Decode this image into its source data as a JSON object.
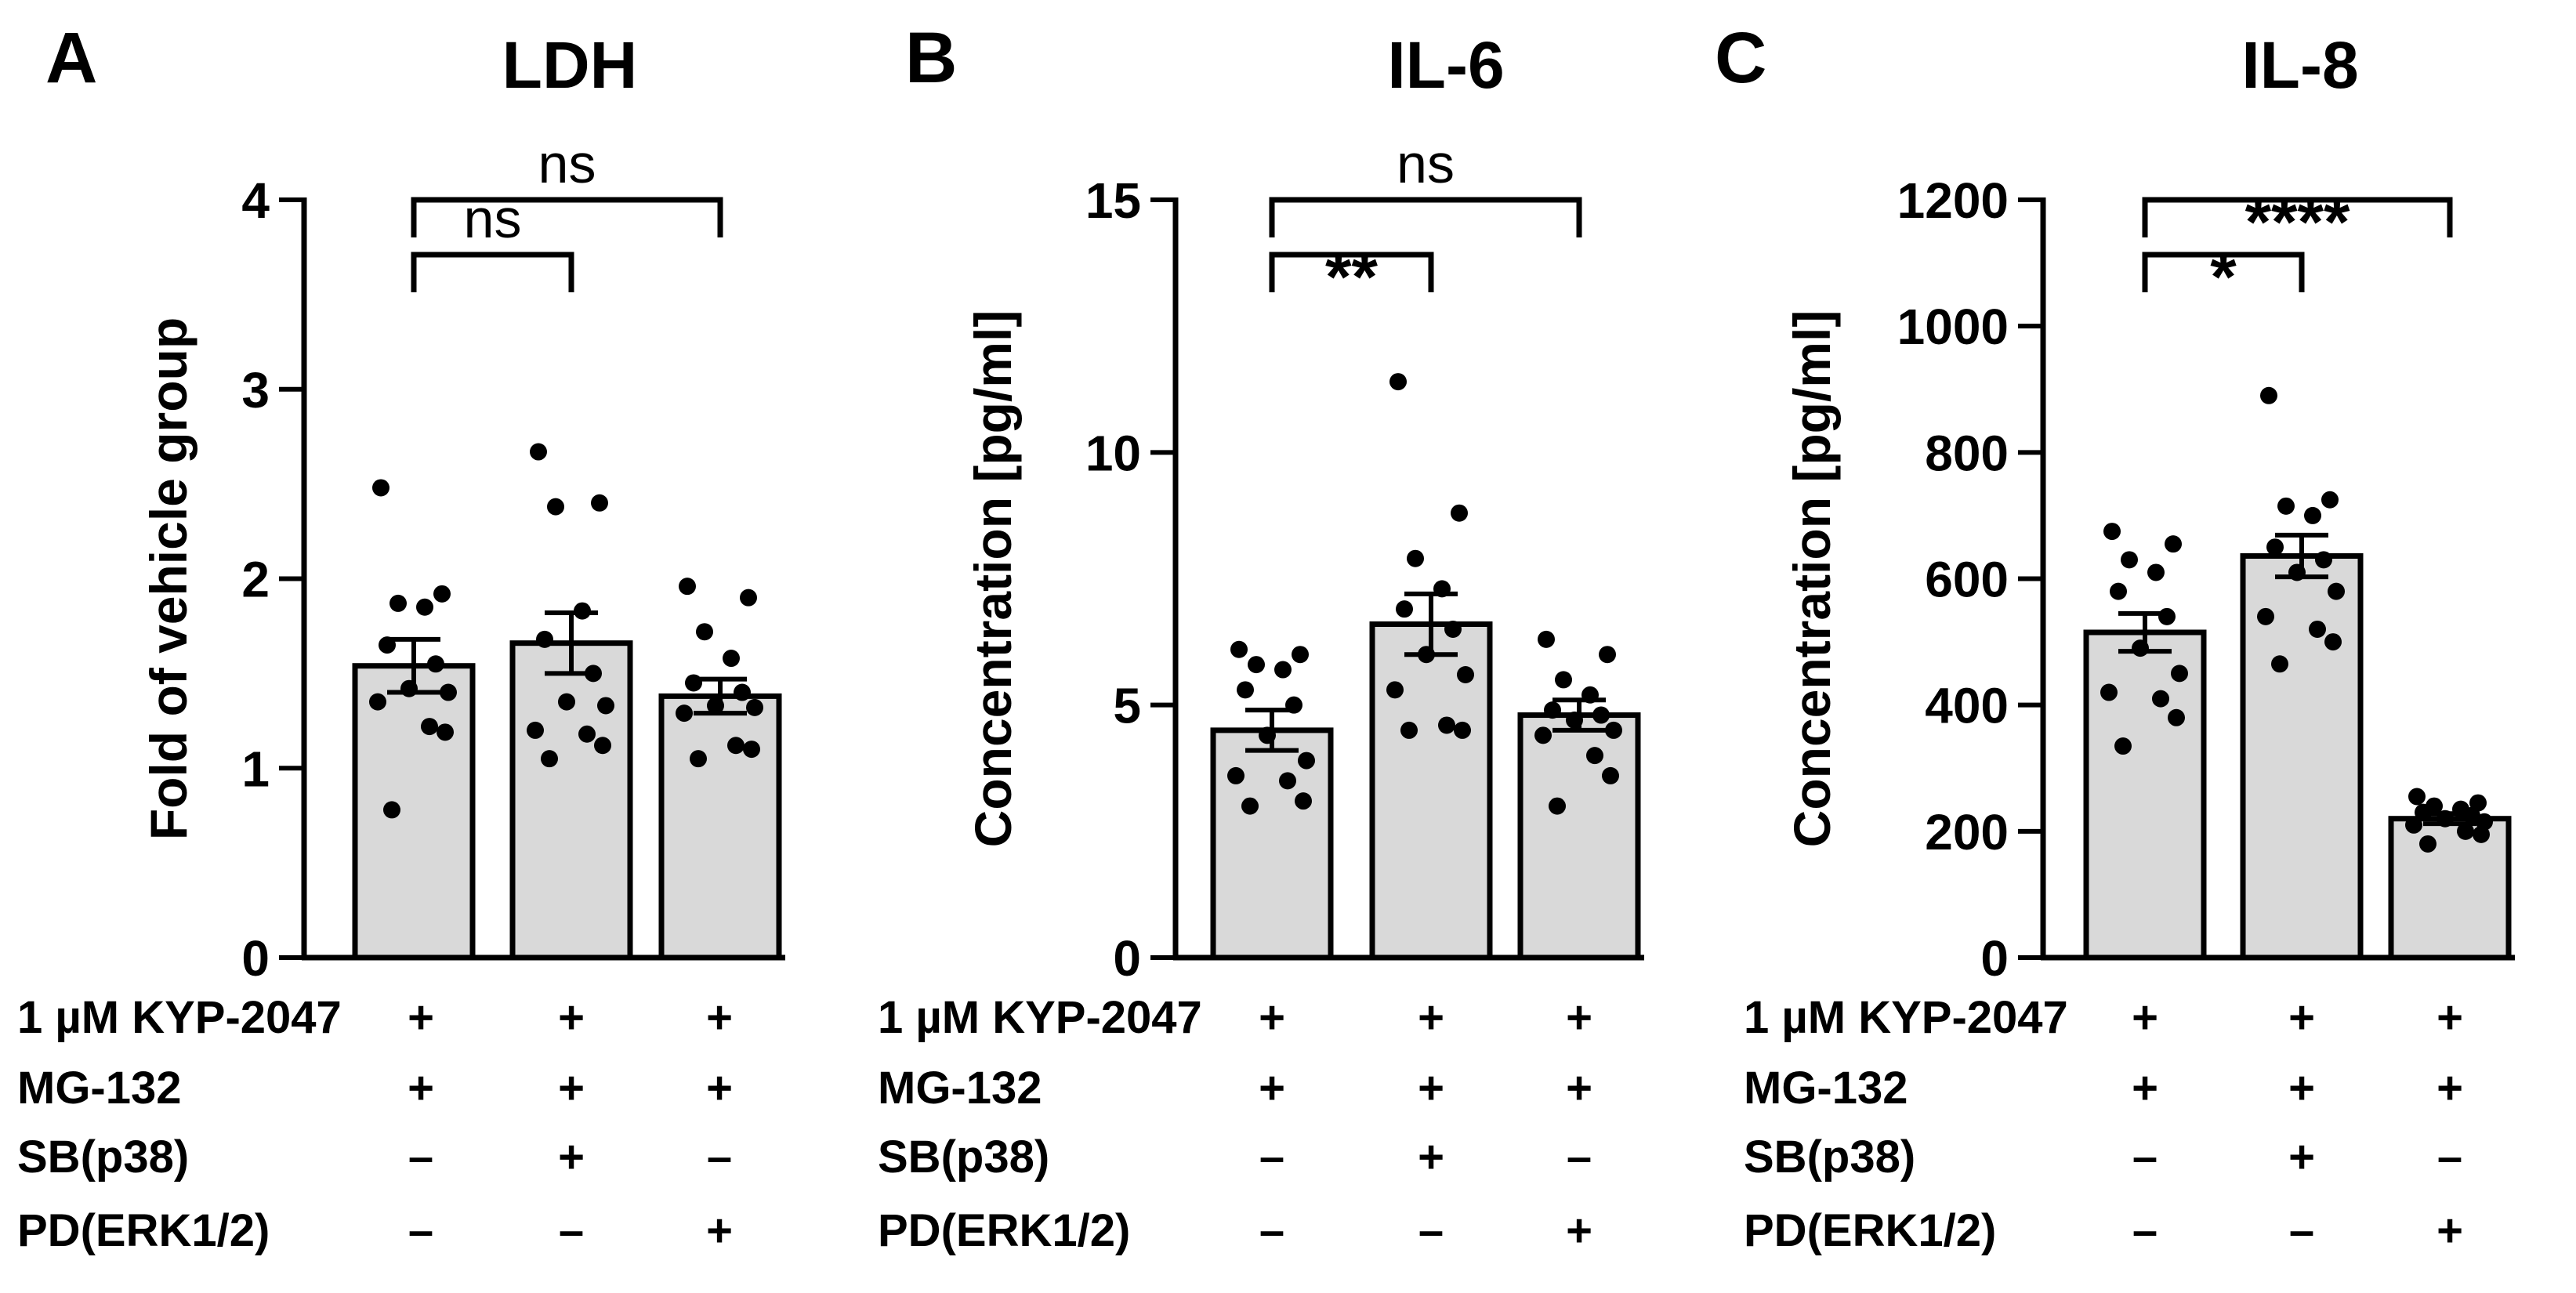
{
  "figure": {
    "background": "#ffffff",
    "bar_color": "#d9d9d9",
    "ink_color": "#000000"
  },
  "treatments": {
    "rows": [
      "1 µM KYP-2047",
      "MG-132",
      "SB(p38)",
      "PD(ERK1/2)"
    ],
    "symbols": [
      [
        "+",
        "+",
        "+"
      ],
      [
        "+",
        "+",
        "+"
      ],
      [
        "–",
        "+",
        "–"
      ],
      [
        "–",
        "–",
        "+"
      ]
    ]
  },
  "chart_data": [
    {
      "type": "bar",
      "panel_letter": "A",
      "title": "LDH",
      "ylabel": "Fold of vehicle group",
      "xlabel": "",
      "ylim": [
        0,
        4
      ],
      "yticks": [
        0,
        1,
        2,
        3,
        4
      ],
      "ytick_labels": [
        "0",
        "1",
        "2",
        "3",
        "4"
      ],
      "categories": [
        "KYP-2047 + MG-132",
        "KYP-2047 + MG-132 + SB(p38)",
        "KYP-2047 + MG-132 + PD(ERK1/2)"
      ],
      "values": [
        1.54,
        1.66,
        1.38
      ],
      "sem": [
        0.14,
        0.16,
        0.09
      ],
      "points": [
        [
          2.48,
          1.92,
          1.87,
          1.85,
          1.65,
          1.55,
          1.42,
          1.4,
          1.35,
          1.22,
          1.19,
          0.78
        ],
        [
          2.67,
          2.4,
          2.38,
          1.83,
          1.68,
          1.5,
          1.35,
          1.33,
          1.2,
          1.18,
          1.12,
          1.05
        ],
        [
          1.96,
          1.9,
          1.72,
          1.58,
          1.45,
          1.4,
          1.33,
          1.32,
          1.29,
          1.12,
          1.1,
          1.05
        ]
      ],
      "significance": [
        {
          "from": 0,
          "to": 1,
          "label": "ns"
        },
        {
          "from": 0,
          "to": 2,
          "label": "ns"
        }
      ]
    },
    {
      "type": "bar",
      "panel_letter": "B",
      "title": "IL-6",
      "ylabel": "Concentration [pg/ml]",
      "xlabel": "",
      "ylim": [
        0,
        15
      ],
      "yticks": [
        0,
        5,
        10,
        15
      ],
      "ytick_labels": [
        "0",
        "5",
        "10",
        "15"
      ],
      "categories": [
        "KYP-2047 + MG-132",
        "KYP-2047 + MG-132 + SB(p38)",
        "KYP-2047 + MG-132 + PD(ERK1/2)"
      ],
      "values": [
        4.5,
        6.6,
        4.8
      ],
      "sem": [
        0.4,
        0.6,
        0.3
      ],
      "points": [
        [
          6.1,
          6.0,
          5.8,
          5.7,
          5.3,
          5.0,
          4.4,
          3.9,
          3.6,
          3.5,
          3.1,
          3.0
        ],
        [
          11.4,
          8.8,
          7.9,
          7.3,
          6.9,
          6.5,
          6.0,
          5.6,
          5.3,
          4.6,
          4.5,
          4.5
        ],
        [
          6.3,
          6.0,
          5.5,
          5.2,
          4.9,
          4.8,
          4.7,
          4.5,
          4.4,
          4.0,
          3.6,
          3.0
        ]
      ],
      "significance": [
        {
          "from": 0,
          "to": 1,
          "label": "**"
        },
        {
          "from": 0,
          "to": 2,
          "label": "ns"
        }
      ]
    },
    {
      "type": "bar",
      "panel_letter": "C",
      "title": "IL-8",
      "ylabel": "Concentration [pg/ml]",
      "xlabel": "",
      "ylim": [
        0,
        1200
      ],
      "yticks": [
        0,
        200,
        400,
        600,
        800,
        1000,
        1200
      ],
      "ytick_labels": [
        "0",
        "200",
        "400",
        "600",
        "800",
        "1000",
        "1200"
      ],
      "categories": [
        "KYP-2047 + MG-132",
        "KYP-2047 + MG-132 + SB(p38)",
        "KYP-2047 + MG-132 + PD(ERK1/2)"
      ],
      "values": [
        515,
        636,
        220
      ],
      "sem": [
        30,
        33,
        8
      ],
      "points": [
        [
          675,
          655,
          630,
          610,
          580,
          540,
          490,
          450,
          420,
          410,
          380,
          335
        ],
        [
          890,
          725,
          715,
          700,
          650,
          630,
          610,
          580,
          540,
          520,
          500,
          465
        ],
        [
          255,
          245,
          240,
          235,
          230,
          225,
          220,
          215,
          210,
          200,
          195,
          180
        ]
      ],
      "significance": [
        {
          "from": 0,
          "to": 1,
          "label": "*"
        },
        {
          "from": 0,
          "to": 2,
          "label": "****"
        }
      ]
    }
  ]
}
